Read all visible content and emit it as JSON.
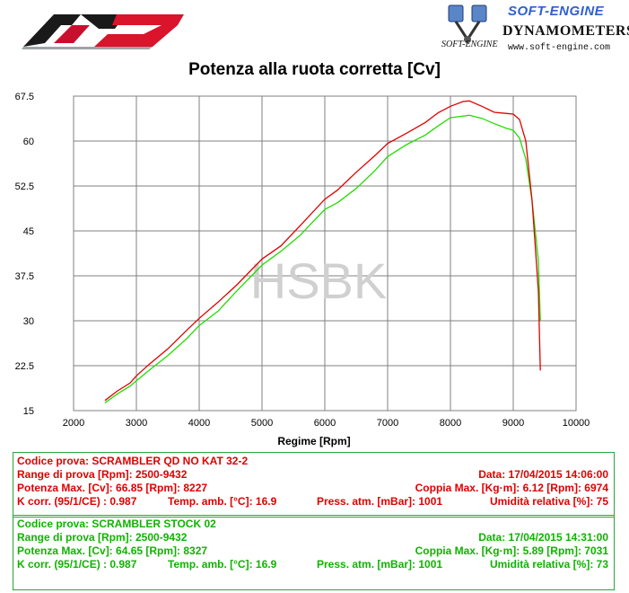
{
  "header": {
    "brand_name": "SOFT-ENGINE",
    "brand_sub": "DYNAMOMETERS",
    "brand_url": "www.soft-engine.com",
    "brand_soft": "SOFT-ENGINE",
    "left_logo": "qd-exhaust-logo",
    "right_logo": "soft-engine-logo"
  },
  "chart_data": {
    "type": "line",
    "title": "Potenza alla ruota corretta [Cv]",
    "xlabel": "Regime [Rpm]",
    "ylabel": "",
    "xlim": [
      2000,
      10000
    ],
    "ylim": [
      15,
      67.5
    ],
    "xticks": [
      "2000",
      "3000",
      "4000",
      "5000",
      "6000",
      "7000",
      "8000",
      "9000",
      "10000"
    ],
    "yticks": [
      "15",
      "22.5",
      "30",
      "37.5",
      "45",
      "52.5",
      "60",
      "67.5"
    ],
    "grid": true,
    "watermark": "HSBK",
    "series": [
      {
        "name": "SCRAMBLER QD NO KAT 32-2",
        "color": "#e00000",
        "x": [
          2500,
          2700,
          2900,
          3000,
          3200,
          3500,
          3800,
          4000,
          4300,
          4600,
          5000,
          5300,
          5600,
          6000,
          6200,
          6500,
          6800,
          7000,
          7300,
          7600,
          7800,
          8000,
          8200,
          8300,
          8500,
          8700,
          8900,
          9000,
          9100,
          9200,
          9300,
          9400,
          9432
        ],
        "y": [
          16.7,
          18.3,
          19.6,
          20.8,
          22.7,
          25.3,
          28.4,
          30.4,
          33.1,
          36.0,
          40.3,
          42.5,
          45.8,
          50.3,
          51.8,
          54.8,
          57.6,
          59.6,
          61.3,
          63.1,
          64.7,
          65.8,
          66.6,
          66.7,
          65.8,
          64.8,
          64.6,
          64.5,
          63.6,
          60.0,
          50.0,
          35.0,
          21.7
        ]
      },
      {
        "name": "SCRAMBLER STOCK 02",
        "color": "#22dd00",
        "x": [
          2500,
          2700,
          2900,
          3000,
          3200,
          3500,
          3800,
          4000,
          4300,
          4600,
          5000,
          5300,
          5600,
          6000,
          6200,
          6500,
          6800,
          7000,
          7300,
          7600,
          7800,
          8000,
          8300,
          8500,
          8700,
          8900,
          9000,
          9100,
          9200,
          9300,
          9400,
          9432
        ],
        "y": [
          16.3,
          17.8,
          19.1,
          20.0,
          21.7,
          24.2,
          27.0,
          29.2,
          31.6,
          35.0,
          39.3,
          41.6,
          44.2,
          48.6,
          49.7,
          52.1,
          55.1,
          57.4,
          59.4,
          61.0,
          62.5,
          63.9,
          64.3,
          63.8,
          62.9,
          62.1,
          61.8,
          60.5,
          57.0,
          50.0,
          40.0,
          30.0
        ]
      }
    ]
  },
  "tests": [
    {
      "codice": "Codice prova: SCRAMBLER QD NO KAT 32-2",
      "range": "Range di prova [Rpm]: 2500-9432",
      "data": "Data: 17/04/2015   14:06:00",
      "potenza": "Potenza Max. [Cv]: 66.85   [Rpm]: 8227",
      "coppia": "Coppia Max. [Kg·m]: 6.12   [Rpm]: 6974",
      "kcorr": "K corr. (95/1/CE) : 0.987",
      "temp": "Temp. amb. [°C]: 16.9",
      "press": "Press. atm. [mBar]: 1001",
      "umid": "Umidità relativa [%]: 75"
    },
    {
      "codice": "Codice prova: SCRAMBLER STOCK 02",
      "range": "Range di prova [Rpm]: 2500-9432",
      "data": "Data: 17/04/2015   14:31:00",
      "potenza": "Potenza Max. [Cv]: 64.65   [Rpm]: 8327",
      "coppia": "Coppia Max. [Kg·m]: 5.89   [Rpm]: 7031",
      "kcorr": "K corr. (95/1/CE) : 0.987",
      "temp": "Temp. amb. [°C]: 16.9",
      "press": "Press. atm. [mBar]: 1001",
      "umid": "Umidità relativa [%]: 73"
    }
  ]
}
